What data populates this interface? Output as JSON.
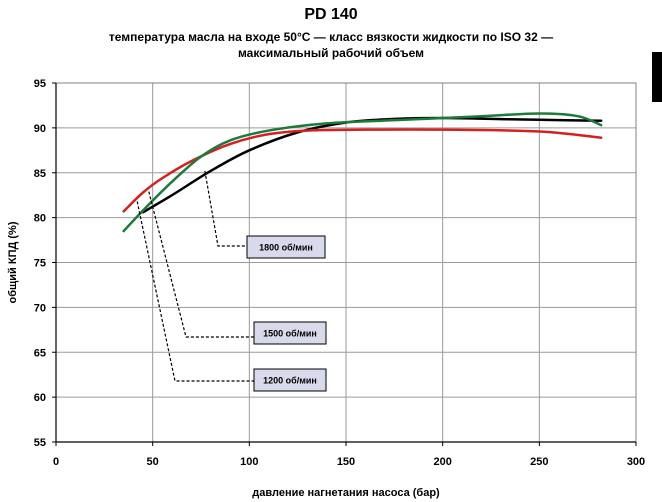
{
  "header": {
    "title": "PD 140",
    "subtitle_line1": "температура масла на входе 50°C — класс вязкости жидкости по ISO 32 —",
    "subtitle_line2": "максимальный рабочий объем"
  },
  "chart_data": {
    "type": "line",
    "xlabel": "давление нагнетания насоса (бар)",
    "ylabel": "общий КПД (%)",
    "xlim": [
      0,
      300
    ],
    "ylim": [
      55,
      95
    ],
    "xticks": [
      0,
      50,
      100,
      150,
      200,
      250,
      300
    ],
    "yticks": [
      55,
      60,
      65,
      70,
      75,
      80,
      85,
      90,
      95
    ],
    "grid": true,
    "series": [
      {
        "label": "1800 об/мин",
        "color": "#000000",
        "x": [
          45,
          60,
          80,
          100,
          125,
          150,
          175,
          200,
          225,
          250,
          282
        ],
        "y": [
          80.6,
          82.5,
          85.2,
          87.5,
          89.5,
          90.6,
          91.0,
          91.1,
          91.0,
          90.9,
          90.8
        ],
        "annotation": {
          "x": 77,
          "y": 85.2
        }
      },
      {
        "label": "1500 об/мин",
        "color": "#d42020",
        "x": [
          35,
          45,
          55,
          70,
          90,
          110,
          130,
          160,
          200,
          250,
          282
        ],
        "y": [
          80.7,
          82.8,
          84.4,
          86.3,
          88.2,
          89.3,
          89.7,
          89.8,
          89.8,
          89.6,
          88.9
        ],
        "annotation": {
          "x": 48,
          "y": 82.9
        }
      },
      {
        "label": "1200 об/мин",
        "color": "#1e7a3a",
        "x": [
          35,
          45,
          60,
          75,
          90,
          110,
          140,
          180,
          220,
          250,
          270,
          282
        ],
        "y": [
          78.5,
          80.8,
          84.0,
          86.8,
          88.6,
          89.7,
          90.5,
          90.9,
          91.3,
          91.6,
          91.3,
          90.3
        ],
        "annotation": {
          "x": 42,
          "y": 81.8
        }
      }
    ],
    "labels": [
      {
        "text": "1800 об/мин"
      },
      {
        "text": "1500 об/мин"
      },
      {
        "text": "1200 об/мин"
      }
    ]
  }
}
